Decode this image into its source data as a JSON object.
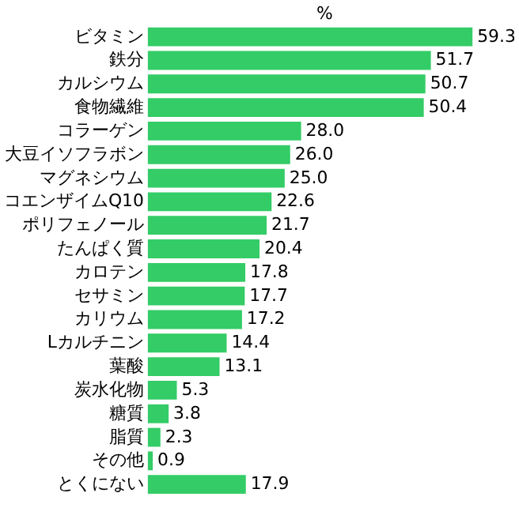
{
  "chart_data": {
    "type": "bar",
    "orientation": "horizontal",
    "title": "%",
    "color": "#33cc66",
    "categories": [
      "ビタミン",
      "鉄分",
      "カルシウム",
      "食物繊維",
      "コラーゲン",
      "大豆イソフラボン",
      "マグネシウム",
      "コエンザイムQ10",
      "ポリフェノール",
      "たんぱく質",
      "カロテン",
      "セサミン",
      "カリウム",
      "Lカルチニン",
      "葉酸",
      "炭水化物",
      "糖質",
      "脂質",
      "その他",
      "とくにない"
    ],
    "values": [
      59.3,
      51.7,
      50.7,
      50.4,
      28.0,
      26.0,
      25.0,
      22.6,
      21.7,
      20.4,
      17.8,
      17.7,
      17.2,
      14.4,
      13.1,
      5.3,
      3.8,
      2.3,
      0.9,
      17.9
    ],
    "value_labels": [
      "59.3",
      "51.7",
      "50.7",
      "50.4",
      "28.0",
      "26.0",
      "25.0",
      "22.6",
      "21.7",
      "20.4",
      "17.8",
      "17.7",
      "17.2",
      "14.4",
      "13.1",
      "5.3",
      "3.8",
      "2.3",
      "0.9",
      "17.9"
    ]
  }
}
